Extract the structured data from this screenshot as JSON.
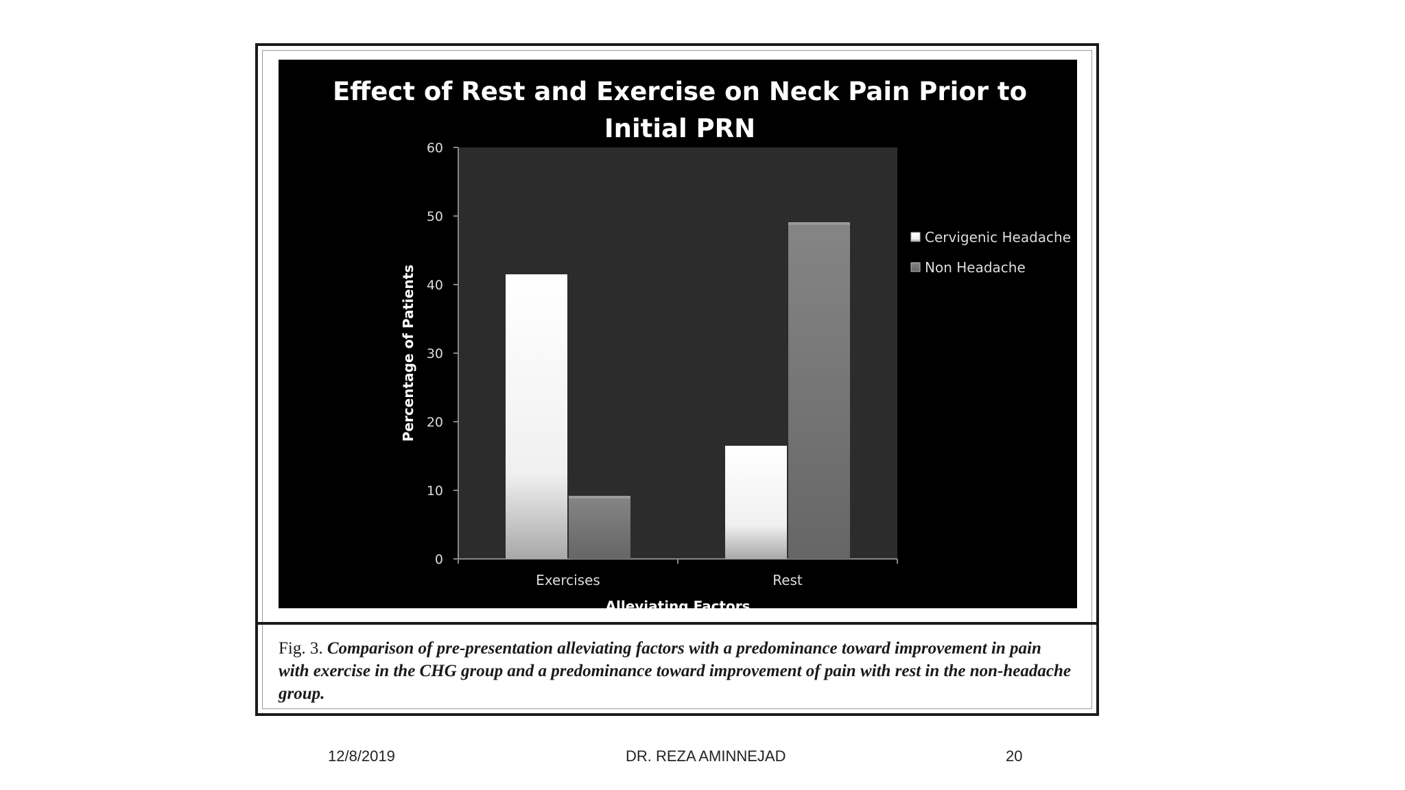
{
  "slide": {
    "footer": {
      "date": "12/8/2019",
      "author": "DR. REZA AMINNEJAD",
      "page_number": "20"
    }
  },
  "figure": {
    "caption_label": "Fig. 3.",
    "caption_text": "Comparison of pre-presentation alleviating factors with a predominance toward improvement in pain with exercise in the CHG group and a predominance toward improvement of pain with rest in the non-headache group."
  },
  "chart_data": {
    "type": "bar",
    "title": "Effect of Rest and Exercise on Neck Pain Prior to\nInitial PRN",
    "xlabel": "Alleviating Factors",
    "ylabel": "Percentage of Patients",
    "categories": [
      "Exercises",
      "Rest"
    ],
    "series": [
      {
        "name": "Cervigenic Headache",
        "values": [
          41.5,
          16.5
        ],
        "color": "#f2f2f2"
      },
      {
        "name": "Non Headache",
        "values": [
          9.2,
          49.1
        ],
        "color": "#7a7a7a"
      }
    ],
    "ylim": [
      0,
      60
    ],
    "yticks": [
      0,
      10,
      20,
      30,
      40,
      50,
      60
    ],
    "grid": false,
    "legend": "right",
    "colors": {
      "panel_bg": "#000000",
      "plot_bg": "#2c2c2c",
      "axis": "#888888",
      "text": "#ffffff"
    }
  }
}
